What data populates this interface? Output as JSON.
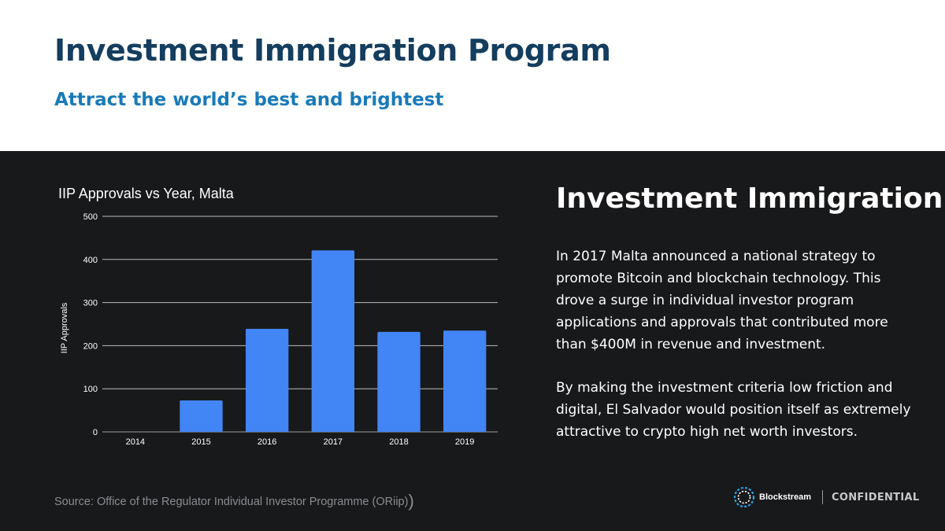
{
  "header": {
    "title": "Investment Immigration Program",
    "subtitle": "Attract the world’s best and brightest"
  },
  "chart_data": {
    "type": "bar",
    "title": "IIP Approvals vs Year, Malta",
    "xlabel": "",
    "ylabel": "IIP Approvals",
    "categories": [
      "2014",
      "2015",
      "2016",
      "2017",
      "2018",
      "2019"
    ],
    "values": [
      0,
      73,
      239,
      421,
      232,
      235
    ],
    "ylim": [
      0,
      500
    ],
    "yticks": [
      0,
      100,
      200,
      300,
      400,
      500
    ],
    "grid": true,
    "bar_color": "#4285f4"
  },
  "source": {
    "text": "Source: Office of the Regulator Individual Investor Programme (ORiip)",
    "trailing": ")"
  },
  "side": {
    "heading": "Investment Immigration",
    "paragraphs": [
      "In 2017 Malta announced  a national strategy to promote Bitcoin and blockchain technology.  This drove a surge in individual investor program applications and approvals that contributed more than $400M in revenue and investment.",
      "By making the investment criteria low friction and digital, El Salvador would position itself as extremely attractive to crypto high net worth investors."
    ]
  },
  "footer": {
    "brand": "Blockstream",
    "label": "CONFIDENTIAL"
  },
  "colors": {
    "background_dark": "#18191b",
    "title": "#143d5e",
    "subtitle": "#1a7ab8",
    "bar": "#4285f4"
  },
  "icons": {
    "brand_logo": "blockstream-logo-icon"
  }
}
